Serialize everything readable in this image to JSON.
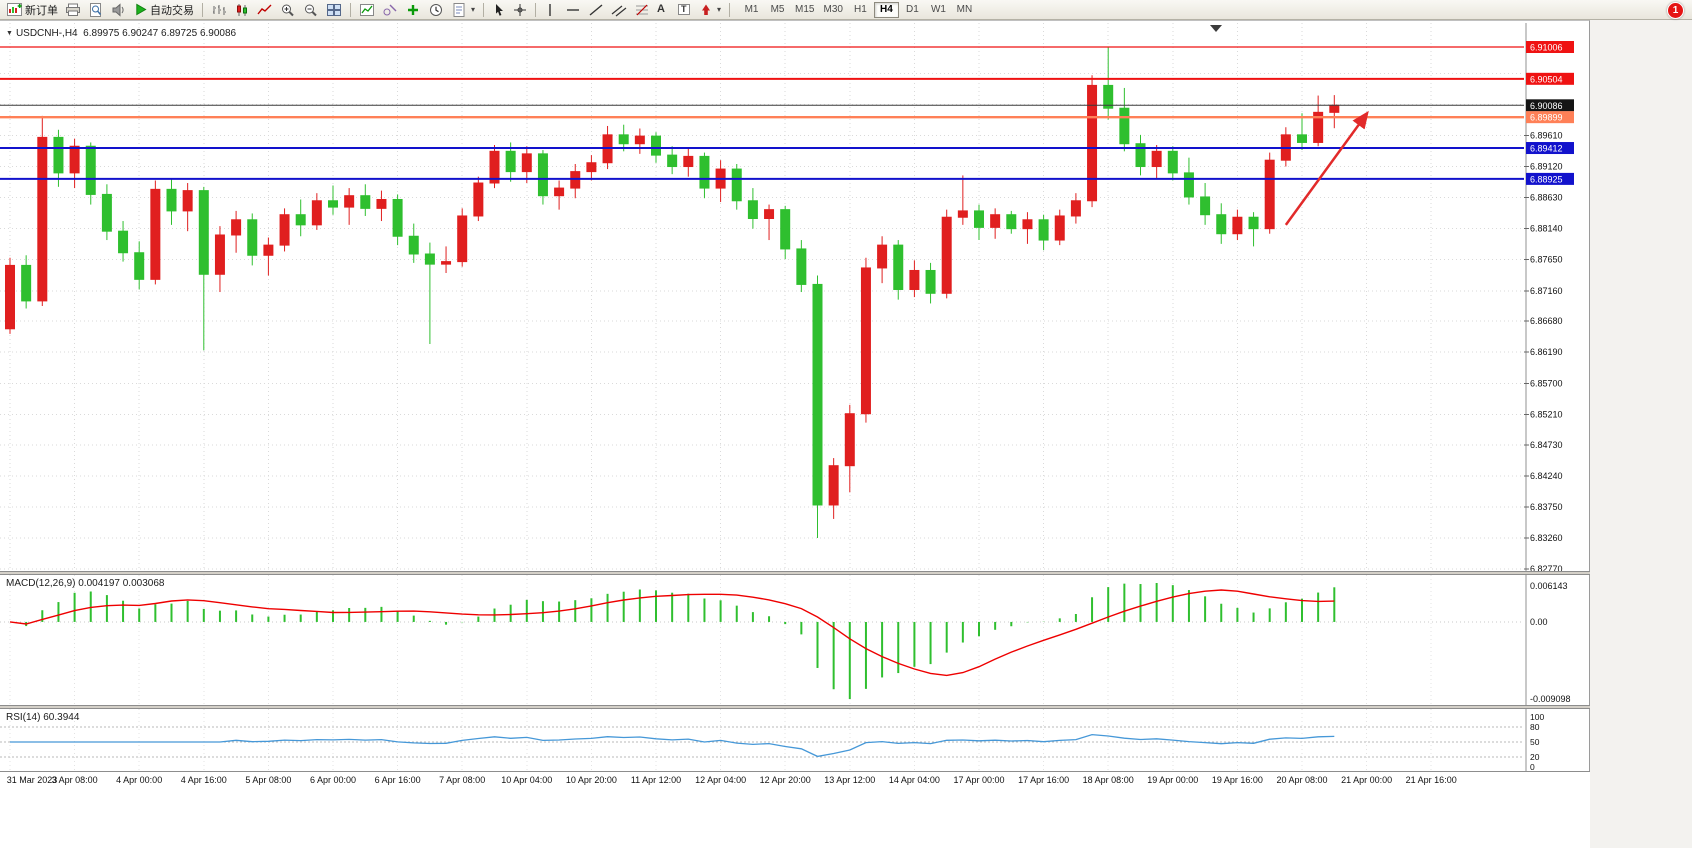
{
  "toolbar": {
    "new_order_label": "新订单",
    "autotrade_label": "自动交易",
    "timeframe_buttons": [
      "M1",
      "M5",
      "M15",
      "M30",
      "H1",
      "H4",
      "D1",
      "W1",
      "MN"
    ],
    "active_timeframe": "H4",
    "notification_count": "1"
  },
  "icons": {
    "collapse": "▼",
    "caret": "▾",
    "text_tool": "A",
    "label_tool": "T"
  },
  "chart": {
    "title": "USDCNH-,H4",
    "ohlc_line": "6.89975 6.90247 6.89725 6.90086",
    "price_axis_labels": [
      "6.89610",
      "6.89120",
      "6.88630",
      "6.88140",
      "6.87650",
      "6.87160",
      "6.86680",
      "6.86190",
      "6.85700",
      "6.85210",
      "6.84730",
      "6.84240",
      "6.83750",
      "6.83260",
      "6.82770"
    ],
    "price_lines": [
      {
        "label": "6.91006",
        "price": 6.91006,
        "color": "#ef1212",
        "badge_color": "#ef1212",
        "width": 1.2
      },
      {
        "label": "6.90504",
        "price": 6.90504,
        "color": "#ef1212",
        "badge_color": "#ef1212",
        "width": 2
      },
      {
        "label": "6.90086",
        "price": 6.90086,
        "color": "#3a3a3a",
        "badge_color": "#151515",
        "width": 1
      },
      {
        "label": "6.89899",
        "price": 6.89899,
        "color": "#ff8057",
        "badge_color": "#ff8057",
        "width": 2.4
      },
      {
        "label": "6.89412",
        "price": 6.89412,
        "color": "#1212cc",
        "badge_color": "#1212cc",
        "width": 2
      },
      {
        "label": "6.88925",
        "price": 6.88925,
        "color": "#1212cc",
        "badge_color": "#1212cc",
        "width": 2
      }
    ]
  },
  "macd": {
    "title": "MACD(12,26,9) 0.004197 0.003068",
    "axis_max": "0.006143",
    "axis_zero": "0.00",
    "axis_min": "-0.009098",
    "histogram_color": "#2fbf2f",
    "signal_color": "#ee0000"
  },
  "rsi": {
    "title": "RSI(14) 60.3944",
    "axis_labels": [
      "100",
      "80",
      "50",
      "20",
      "0"
    ],
    "level_lines": [
      80,
      50,
      20
    ],
    "line_color": "#4698d8"
  },
  "chart_data": {
    "type": "candlestick",
    "symbol": "USDCNH-",
    "period": "H4",
    "up_color": "#e01f1f",
    "down_color": "#2fbf2f",
    "y_axis_range": [
      6.8277,
      6.9139
    ],
    "current_bar": {
      "open": 6.89975,
      "high": 6.90247,
      "low": 6.89725,
      "close": 6.90086
    },
    "x_labels": [
      "31 Mar 2023",
      "3 Apr 08:00",
      "4 Apr 00:00",
      "4 Apr 16:00",
      "5 Apr 08:00",
      "6 Apr 00:00",
      "6 Apr 16:00",
      "7 Apr 08:00",
      "10 Apr 04:00",
      "10 Apr 20:00",
      "11 Apr 12:00",
      "12 Apr 04:00",
      "12 Apr 20:00",
      "13 Apr 12:00",
      "14 Apr 04:00",
      "17 Apr 00:00",
      "17 Apr 16:00",
      "18 Apr 08:00",
      "19 Apr 00:00",
      "19 Apr 16:00",
      "20 Apr 08:00",
      "21 Apr 00:00",
      "21 Apr 16:00"
    ],
    "candles": [
      [
        6.8656,
        6.8768,
        6.8648,
        6.8756
      ],
      [
        6.8756,
        6.8772,
        6.8688,
        6.87
      ],
      [
        6.87,
        6.8992,
        6.8692,
        6.8958
      ],
      [
        6.8958,
        6.897,
        6.888,
        6.8902
      ],
      [
        6.8902,
        6.8956,
        6.8878,
        6.8944
      ],
      [
        6.8944,
        6.895,
        6.8852,
        6.8868
      ],
      [
        6.8868,
        6.8884,
        6.8796,
        6.881
      ],
      [
        6.881,
        6.8826,
        6.8762,
        6.8776
      ],
      [
        6.8776,
        6.8794,
        6.8718,
        6.8734
      ],
      [
        6.8734,
        6.889,
        6.8726,
        6.8876
      ],
      [
        6.8876,
        6.8892,
        6.882,
        6.8842
      ],
      [
        6.8842,
        6.8886,
        6.881,
        6.8874
      ],
      [
        6.8874,
        6.888,
        6.8622,
        6.8742
      ],
      [
        6.8742,
        6.8818,
        6.8714,
        6.8804
      ],
      [
        6.8804,
        6.8842,
        6.8776,
        6.8828
      ],
      [
        6.8828,
        6.8838,
        6.8756,
        6.8772
      ],
      [
        6.8772,
        6.88,
        6.874,
        6.8788
      ],
      [
        6.8788,
        6.8846,
        6.8778,
        6.8836
      ],
      [
        6.8836,
        6.886,
        6.8802,
        6.882
      ],
      [
        6.882,
        6.887,
        6.8812,
        6.8858
      ],
      [
        6.8858,
        6.8882,
        6.8836,
        6.8848
      ],
      [
        6.8848,
        6.8878,
        6.882,
        6.8866
      ],
      [
        6.8866,
        6.8884,
        6.8834,
        6.8846
      ],
      [
        6.8846,
        6.8874,
        6.8826,
        6.886
      ],
      [
        6.886,
        6.8868,
        6.8788,
        6.8802
      ],
      [
        6.8802,
        6.8822,
        6.876,
        6.8774
      ],
      [
        6.8774,
        6.8792,
        6.8632,
        6.8758
      ],
      [
        6.8758,
        6.8786,
        6.8744,
        6.8762
      ],
      [
        6.8762,
        6.8846,
        6.8754,
        6.8834
      ],
      [
        6.8834,
        6.8896,
        6.8826,
        6.8886
      ],
      [
        6.8886,
        6.8946,
        6.8878,
        6.8936
      ],
      [
        6.8936,
        6.895,
        6.8888,
        6.8904
      ],
      [
        6.8904,
        6.8944,
        6.8886,
        6.8932
      ],
      [
        6.8932,
        6.8938,
        6.8852,
        6.8866
      ],
      [
        6.8866,
        6.889,
        6.8844,
        6.8878
      ],
      [
        6.8878,
        6.8916,
        6.8862,
        6.8904
      ],
      [
        6.8904,
        6.893,
        6.889,
        6.8918
      ],
      [
        6.8918,
        6.8976,
        6.8908,
        6.8962
      ],
      [
        6.8962,
        6.8978,
        6.8936,
        6.8948
      ],
      [
        6.8948,
        6.8972,
        6.8932,
        6.896
      ],
      [
        6.896,
        6.8966,
        6.8918,
        6.893
      ],
      [
        6.893,
        6.8944,
        6.89,
        6.8912
      ],
      [
        6.8912,
        6.894,
        6.8896,
        6.8928
      ],
      [
        6.8928,
        6.8934,
        6.8862,
        6.8878
      ],
      [
        6.8878,
        6.8922,
        6.8856,
        6.8908
      ],
      [
        6.8908,
        6.8916,
        6.8844,
        6.8858
      ],
      [
        6.8858,
        6.8878,
        6.8814,
        6.883
      ],
      [
        6.883,
        6.8852,
        6.8796,
        6.8844
      ],
      [
        6.8844,
        6.885,
        6.8766,
        6.8782
      ],
      [
        6.8782,
        6.8796,
        6.8714,
        6.8726
      ],
      [
        6.8726,
        6.874,
        6.8326,
        6.8378
      ],
      [
        6.8378,
        6.8452,
        6.8356,
        6.844
      ],
      [
        6.844,
        6.8536,
        6.8398,
        6.8522
      ],
      [
        6.8522,
        6.8768,
        6.8508,
        6.8752
      ],
      [
        6.8752,
        6.8802,
        6.8728,
        6.8788
      ],
      [
        6.8788,
        6.8796,
        6.8702,
        6.8718
      ],
      [
        6.8718,
        6.8764,
        6.8706,
        6.8748
      ],
      [
        6.8748,
        6.876,
        6.8696,
        6.8712
      ],
      [
        6.8712,
        6.8844,
        6.8704,
        6.8832
      ],
      [
        6.8832,
        6.8898,
        6.882,
        6.8842
      ],
      [
        6.8842,
        6.8852,
        6.8796,
        6.8816
      ],
      [
        6.8816,
        6.8846,
        6.8798,
        6.8836
      ],
      [
        6.8836,
        6.8842,
        6.8806,
        6.8814
      ],
      [
        6.8814,
        6.884,
        6.879,
        6.8828
      ],
      [
        6.8828,
        6.8836,
        6.878,
        6.8796
      ],
      [
        6.8796,
        6.8844,
        6.8788,
        6.8834
      ],
      [
        6.8834,
        6.887,
        6.8822,
        6.8858
      ],
      [
        6.8858,
        6.9056,
        6.8848,
        6.904
      ],
      [
        6.904,
        6.91006,
        6.8986,
        6.9004
      ],
      [
        6.9004,
        6.9036,
        6.8936,
        6.8948
      ],
      [
        6.8948,
        6.8962,
        6.8898,
        6.8912
      ],
      [
        6.8912,
        6.8946,
        6.8892,
        6.8936
      ],
      [
        6.8936,
        6.8944,
        6.889,
        6.8902
      ],
      [
        6.8902,
        6.8926,
        6.8852,
        6.8864
      ],
      [
        6.8864,
        6.8886,
        6.882,
        6.8836
      ],
      [
        6.8836,
        6.8854,
        6.879,
        6.8806
      ],
      [
        6.8806,
        6.8844,
        6.8796,
        6.8832
      ],
      [
        6.8832,
        6.884,
        6.8786,
        6.8814
      ],
      [
        6.8814,
        6.8934,
        6.8806,
        6.8922
      ],
      [
        6.8922,
        6.8974,
        6.8912,
        6.8962
      ],
      [
        6.8962,
        6.8996,
        6.8938,
        6.895
      ],
      [
        6.895,
        6.9024,
        6.8944,
        6.89975
      ],
      [
        6.89975,
        6.90247,
        6.89725,
        6.90086
      ]
    ],
    "indicators": [
      {
        "name": "MACD",
        "params": [
          12,
          26,
          9
        ],
        "display_values": [
          0.004197,
          0.003068
        ]
      },
      {
        "name": "RSI",
        "params": [
          14
        ],
        "display_value": 60.3944
      }
    ],
    "annotation_arrow": {
      "color": "#e22a2a",
      "direction": "up-right",
      "from_bar": 79,
      "from_price": 6.882,
      "to_bar": 84,
      "to_price": 6.8995
    }
  }
}
